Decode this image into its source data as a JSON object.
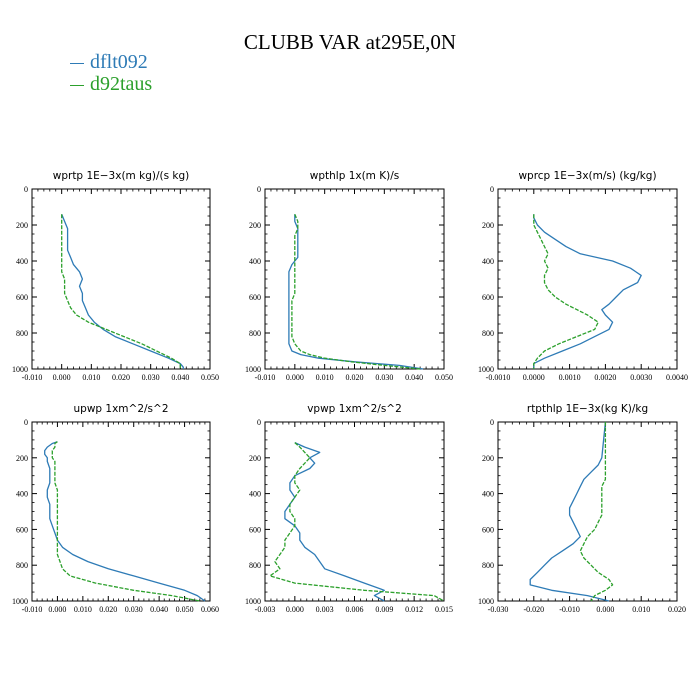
{
  "title": "CLUBB VAR at295E,0N",
  "legend": [
    {
      "name": "dflt092",
      "color": "#2e7bb6"
    },
    {
      "name": "d92taus",
      "color": "#2ca02c"
    }
  ],
  "chart_data": [
    {
      "type": "line",
      "title": "wprtp   1E−3x(m kg)/(s kg)",
      "xlim": [
        -0.01,
        0.05
      ],
      "xticks": [
        "-0.010",
        "0.000",
        "0.010",
        "0.020",
        "0.030",
        "0.040",
        "0.050"
      ],
      "ylim": [
        0,
        1000
      ],
      "yticks": [
        "0",
        "200",
        "400",
        "600",
        "800",
        "1000"
      ],
      "y": [
        140,
        180,
        220,
        260,
        300,
        340,
        380,
        420,
        460,
        500,
        540,
        580,
        620,
        660,
        700,
        740,
        780,
        820,
        860,
        900,
        940,
        970,
        990,
        1000
      ],
      "series": [
        {
          "name": "dflt092",
          "values": [
            0,
            0.001,
            0.002,
            0.002,
            0.002,
            0.002,
            0.003,
            0.004,
            0.006,
            0.007,
            0.006,
            0.007,
            0.007,
            0.008,
            0.009,
            0.011,
            0.014,
            0.018,
            0.024,
            0.03,
            0.036,
            0.04,
            0.041,
            0.041
          ]
        },
        {
          "name": "d92taus",
          "values": [
            0,
            0,
            0,
            0,
            0,
            0,
            0,
            0,
            0,
            0.001,
            0.001,
            0.001,
            0.002,
            0.003,
            0.005,
            0.009,
            0.015,
            0.021,
            0.027,
            0.032,
            0.037,
            0.04,
            0.04,
            0.04
          ]
        }
      ]
    },
    {
      "type": "line",
      "title": "wpthlp   1x(m K)/s",
      "xlim": [
        -0.01,
        0.05
      ],
      "xticks": [
        "-0.010",
        "0.000",
        "0.010",
        "0.020",
        "0.030",
        "0.040",
        "0.050"
      ],
      "ylim": [
        0,
        1000
      ],
      "yticks": [
        "0",
        "200",
        "400",
        "600",
        "800",
        "1000"
      ],
      "y": [
        140,
        180,
        220,
        260,
        300,
        340,
        380,
        420,
        460,
        500,
        540,
        580,
        620,
        660,
        700,
        740,
        780,
        820,
        860,
        900,
        920,
        940,
        960,
        980,
        1000
      ],
      "series": [
        {
          "name": "dflt092",
          "values": [
            0,
            0,
            0.001,
            0.001,
            0.001,
            0.001,
            0.001,
            -0.001,
            -0.002,
            -0.002,
            -0.002,
            -0.002,
            -0.002,
            -0.002,
            -0.002,
            -0.002,
            -0.002,
            -0.002,
            -0.002,
            -0.001,
            0.002,
            0.008,
            0.02,
            0.035,
            0.043
          ]
        },
        {
          "name": "d92taus",
          "values": [
            0,
            0.001,
            0.001,
            0,
            0,
            0,
            0,
            0,
            0,
            0,
            0,
            0,
            -0.001,
            -0.001,
            -0.001,
            -0.001,
            -0.001,
            -0.001,
            0,
            0.002,
            0.005,
            0.01,
            0.019,
            0.03,
            0.042
          ]
        }
      ]
    },
    {
      "type": "line",
      "title": "wprcp   1E−3x(m/s) (kg/kg)",
      "xlim": [
        -0.001,
        0.004
      ],
      "xticks": [
        "-0.0010",
        "0.0000",
        "0.0010",
        "0.0020",
        "0.0030",
        "0.0040"
      ],
      "ylim": [
        0,
        1000
      ],
      "yticks": [
        "0",
        "200",
        "400",
        "600",
        "800",
        "1000"
      ],
      "y": [
        140,
        160,
        200,
        240,
        280,
        320,
        360,
        400,
        440,
        480,
        520,
        560,
        600,
        640,
        670,
        700,
        740,
        780,
        820,
        860,
        900,
        940,
        970,
        1000
      ],
      "series": [
        {
          "name": "dflt092",
          "values": [
            0,
            0,
            0.0001,
            0.0003,
            0.0006,
            0.0009,
            0.0013,
            0.0022,
            0.0027,
            0.003,
            0.0029,
            0.0025,
            0.0023,
            0.0021,
            0.0019,
            0.002,
            0.0022,
            0.0021,
            0.0017,
            0.0013,
            0.0008,
            0.0003,
            0,
            0
          ]
        },
        {
          "name": "d92taus",
          "values": [
            0,
            0,
            0,
            0.0001,
            0.0002,
            0.0003,
            0.0004,
            0.0003,
            0.0004,
            0.0003,
            0.0003,
            0.0004,
            0.0006,
            0.0009,
            0.0012,
            0.0015,
            0.0018,
            0.0017,
            0.0012,
            0.0007,
            0.0003,
            0.0001,
            0,
            0
          ]
        }
      ]
    },
    {
      "type": "line",
      "title": "upwp   1xm^2/s^2",
      "xlim": [
        -0.01,
        0.06
      ],
      "xticks": [
        "-0.010",
        "0.000",
        "0.010",
        "0.020",
        "0.030",
        "0.040",
        "0.050",
        "0.060"
      ],
      "ylim": [
        0,
        1000
      ],
      "yticks": [
        "0",
        "200",
        "400",
        "600",
        "800",
        "1000"
      ],
      "y": [
        110,
        120,
        140,
        160,
        180,
        200,
        220,
        260,
        300,
        340,
        380,
        420,
        460,
        500,
        540,
        580,
        620,
        660,
        700,
        740,
        780,
        820,
        860,
        900,
        940,
        970,
        1000
      ],
      "series": [
        {
          "name": "dflt092",
          "values": [
            0,
            -0.002,
            -0.004,
            -0.005,
            -0.005,
            -0.004,
            -0.004,
            -0.003,
            -0.003,
            -0.003,
            -0.004,
            -0.004,
            -0.003,
            -0.003,
            -0.003,
            -0.002,
            -0.001,
            0,
            0.002,
            0.006,
            0.012,
            0.02,
            0.03,
            0.04,
            0.05,
            0.055,
            0.058
          ]
        },
        {
          "name": "d92taus",
          "values": [
            0,
            -0.001,
            -0.001,
            -0.002,
            -0.002,
            -0.002,
            -0.001,
            -0.001,
            -0.001,
            -0.001,
            0,
            0,
            0,
            0,
            0,
            0,
            0,
            0,
            0,
            0,
            0.001,
            0.002,
            0.005,
            0.015,
            0.03,
            0.045,
            0.056
          ]
        }
      ]
    },
    {
      "type": "line",
      "title": "vpwp   1xm^2/s^2",
      "xlim": [
        -0.003,
        0.015
      ],
      "xticks": [
        "-0.003",
        "0.000",
        "0.003",
        "0.006",
        "0.009",
        "0.012",
        "0.015"
      ],
      "ylim": [
        0,
        1000
      ],
      "yticks": [
        "0",
        "200",
        "400",
        "600",
        "800",
        "1000"
      ],
      "y": [
        115,
        140,
        170,
        200,
        230,
        260,
        300,
        340,
        380,
        420,
        460,
        500,
        540,
        580,
        620,
        660,
        700,
        740,
        780,
        820,
        860,
        900,
        940,
        970,
        1000
      ],
      "series": [
        {
          "name": "dflt092",
          "values": [
            0,
            0.001,
            0.0025,
            0.0015,
            0.002,
            0.0015,
            0,
            -0.0005,
            -0.0005,
            0,
            -0.0005,
            -0.001,
            -0.001,
            0,
            0.0005,
            0.0005,
            0.001,
            0.002,
            0.0025,
            0.003,
            0.005,
            0.007,
            0.009,
            0.008,
            0.009
          ]
        },
        {
          "name": "d92taus",
          "values": [
            0,
            0.0005,
            0.001,
            0.0015,
            0.001,
            0.0005,
            0,
            0,
            0.0005,
            0,
            -0.0005,
            -0.0005,
            0,
            0,
            -0.0005,
            -0.001,
            -0.001,
            -0.0015,
            -0.002,
            -0.0015,
            -0.0025,
            0,
            0.007,
            0.014,
            0.015
          ]
        }
      ]
    },
    {
      "type": "line",
      "title": "rtpthlp   1E−3x(kg K)/kg",
      "xlim": [
        -0.03,
        0.02
      ],
      "xticks": [
        "-0.030",
        "-0.020",
        "-0.010",
        "0.000",
        "0.010",
        "0.020"
      ],
      "ylim": [
        0,
        1000
      ],
      "yticks": [
        "0",
        "200",
        "400",
        "600",
        "800",
        "1000"
      ],
      "y": [
        0,
        200,
        240,
        280,
        320,
        360,
        400,
        440,
        480,
        520,
        560,
        600,
        640,
        680,
        720,
        760,
        800,
        840,
        880,
        910,
        940,
        970,
        1000
      ],
      "series": [
        {
          "name": "dflt092",
          "values": [
            0,
            -0.001,
            -0.002,
            -0.004,
            -0.006,
            -0.007,
            -0.008,
            -0.009,
            -0.01,
            -0.01,
            -0.009,
            -0.008,
            -0.007,
            -0.009,
            -0.012,
            -0.015,
            -0.017,
            -0.019,
            -0.021,
            -0.021,
            -0.015,
            -0.005,
            0.001
          ]
        },
        {
          "name": "d92taus",
          "values": [
            0,
            0,
            0,
            0,
            0,
            -0.001,
            -0.001,
            -0.001,
            -0.001,
            -0.001,
            -0.002,
            -0.003,
            -0.005,
            -0.006,
            -0.007,
            -0.006,
            -0.004,
            -0.002,
            0.001,
            0.002,
            0,
            -0.003,
            -0.004
          ]
        }
      ]
    }
  ]
}
